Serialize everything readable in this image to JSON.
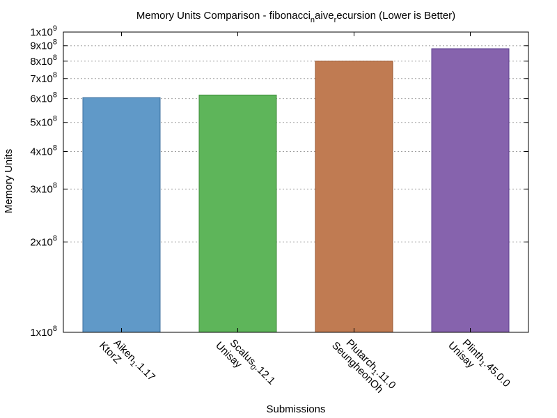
{
  "chart_data": {
    "type": "bar",
    "title": {
      "prefix": "Memory Units Comparison - fibonacci",
      "sub1": "n",
      "mid": "aive",
      "sub2": "r",
      "suffix": "ecursion (Lower is Better)"
    },
    "xlabel": "Submissions",
    "ylabel": "Memory Units",
    "yscale": "log",
    "ylim": [
      100000000,
      1000000000
    ],
    "grid": "horizontal-dashed",
    "yticks": [
      {
        "value": 100000000,
        "base": "1x10",
        "exp": "8"
      },
      {
        "value": 200000000,
        "base": "2x10",
        "exp": "8"
      },
      {
        "value": 300000000,
        "base": "3x10",
        "exp": "8"
      },
      {
        "value": 400000000,
        "base": "4x10",
        "exp": "8"
      },
      {
        "value": 500000000,
        "base": "5x10",
        "exp": "8"
      },
      {
        "value": 600000000,
        "base": "6x10",
        "exp": "8"
      },
      {
        "value": 700000000,
        "base": "7x10",
        "exp": "8"
      },
      {
        "value": 800000000,
        "base": "8x10",
        "exp": "8"
      },
      {
        "value": 900000000,
        "base": "9x10",
        "exp": "8"
      },
      {
        "value": 1000000000,
        "base": "1x10",
        "exp": "9"
      }
    ],
    "categories": [
      {
        "main": "Aiken",
        "sub": "1",
        "rest": ".1.17",
        "line2": "KtorZ"
      },
      {
        "main": "Scalus",
        "sub": "0",
        "rest": ".12.1",
        "line2": "Unisay"
      },
      {
        "main": "Plutarch",
        "sub": "1",
        "rest": ".11.0",
        "line2": "SeungheonOh"
      },
      {
        "main": "Plinth",
        "sub": "1",
        "rest": ".45.0.0",
        "line2": "Unisay"
      }
    ],
    "values": [
      605000000,
      617000000,
      800000000,
      880000000
    ],
    "colors": [
      "#6099c8",
      "#5eb55a",
      "#c07b52",
      "#8663ad"
    ],
    "stroke_colors": [
      "#3d6f9e",
      "#3d8a3a",
      "#9a5730",
      "#5e4290"
    ]
  }
}
